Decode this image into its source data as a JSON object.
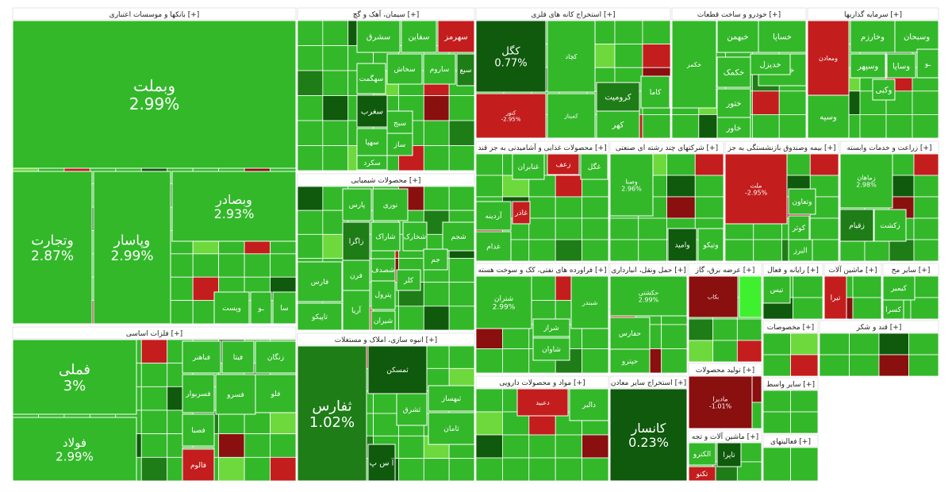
{
  "palette": {
    "green": "#33b82a",
    "green_dark": "#1f7d17",
    "green_deep": "#0f5a0c",
    "green_light": "#6dd93d",
    "bright": "#3ef02e",
    "red": "#c41d1d",
    "red_dark": "#8a0f0f",
    "header_bg": "#ffffff",
    "border": "#ffffff"
  },
  "chart_data": {
    "type": "heatmap",
    "sectors": [
      {
        "name": "بانکها و موسسات اعتباری [+]",
        "tiles": [
          {
            "label": "وبملت",
            "value": "2.99%",
            "color": "green"
          },
          {
            "label": "وتجارت",
            "value": "2.87%",
            "color": "green"
          },
          {
            "label": "وپاسار",
            "value": "2.99%",
            "color": "green"
          },
          {
            "label": "وبصادر",
            "value": "2.93%",
            "color": "green"
          },
          {
            "label": "وپست",
            "value": "",
            "color": "green"
          },
          {
            "label": "سا",
            "value": "",
            "color": "green"
          },
          {
            "label": "ـو",
            "value": "",
            "color": "green"
          }
        ]
      },
      {
        "name": "فلزات اساسی [+]",
        "tiles": [
          {
            "label": "فملی",
            "value": "3%",
            "color": "green"
          },
          {
            "label": "فولاد",
            "value": "2.99%",
            "color": "green"
          },
          {
            "label": "فباهنر",
            "value": "",
            "color": "green"
          },
          {
            "label": "فیتا",
            "value": "",
            "color": "green"
          },
          {
            "label": "زنگان",
            "value": "",
            "color": "green"
          },
          {
            "label": "فسرو",
            "value": "",
            "color": "green"
          },
          {
            "label": "فسربوار",
            "value": "",
            "color": "green"
          },
          {
            "label": "فلو",
            "value": "",
            "color": "green"
          },
          {
            "label": "فصبا",
            "value": "",
            "color": "green"
          },
          {
            "label": "ذوب",
            "value": "",
            "color": "green"
          },
          {
            "label": "فالوم",
            "value": "",
            "color": "red"
          }
        ]
      },
      {
        "name": "سیمان، آهک و گچ [+]",
        "tiles": [
          {
            "label": "سهرمز",
            "value": "",
            "color": "red"
          },
          {
            "label": "سفاین",
            "value": "",
            "color": "green"
          },
          {
            "label": "سشرق",
            "value": "",
            "color": "green"
          },
          {
            "label": "سخاش",
            "value": "",
            "color": "green"
          },
          {
            "label": "ساروم",
            "value": "",
            "color": "green"
          },
          {
            "label": "سبع",
            "value": "",
            "color": "green_dark"
          },
          {
            "label": "سغرب",
            "value": "",
            "color": "green_deep"
          },
          {
            "label": "سهگمت",
            "value": "",
            "color": "green"
          },
          {
            "label": "سبج",
            "value": "",
            "color": "green"
          },
          {
            "label": "ساز",
            "value": "",
            "color": "green"
          },
          {
            "label": "سهپا",
            "value": "",
            "color": "green"
          },
          {
            "label": "سکرد",
            "value": "",
            "color": "green"
          }
        ]
      },
      {
        "name": "محصولات شیمیایی [+]",
        "tiles": [
          {
            "label": "پارس",
            "value": "",
            "color": "green"
          },
          {
            "label": "نوری",
            "value": "",
            "color": "green"
          },
          {
            "label": "پترول",
            "value": "",
            "color": "green"
          },
          {
            "label": "زاگرا",
            "value": "",
            "color": "green_dark"
          },
          {
            "label": "شپنا",
            "value": "",
            "color": "green"
          },
          {
            "label": "شاراک",
            "value": "",
            "color": "green"
          },
          {
            "label": "شخارک",
            "value": "",
            "color": "green"
          },
          {
            "label": "شجم",
            "value": "",
            "color": "green"
          },
          {
            "label": "فارس",
            "value": "",
            "color": "green"
          },
          {
            "label": "تاپیکو",
            "value": "",
            "color": "green"
          },
          {
            "label": "آریا",
            "value": "",
            "color": "green"
          },
          {
            "label": "شیران",
            "value": "",
            "color": "green"
          },
          {
            "label": "فرن",
            "value": "",
            "color": "green"
          },
          {
            "label": "شصدف",
            "value": "",
            "color": "green"
          },
          {
            "label": "کلر",
            "value": "",
            "color": "green"
          },
          {
            "label": "جم",
            "value": "",
            "color": "green"
          }
        ]
      },
      {
        "name": "انبوه سازی، املاک و مستغلات [+]",
        "tiles": [
          {
            "label": "ثفارس",
            "value": "1.02%",
            "color": "green_dark"
          },
          {
            "label": "ثامان",
            "value": "",
            "color": "green"
          },
          {
            "label": "ثبهساز",
            "value": "",
            "color": "green"
          },
          {
            "label": "ثشرق",
            "value": "",
            "color": "green"
          },
          {
            "label": "آ س پ",
            "value": "",
            "color": "green_deep"
          },
          {
            "label": "ثمسکن",
            "value": "",
            "color": "green_deep"
          }
        ]
      },
      {
        "name": "استخراج کانه های فلزی [+]",
        "tiles": [
          {
            "label": "کگل",
            "value": "0.77%",
            "color": "green_deep"
          },
          {
            "label": "کچاد",
            "value": "",
            "color": "green"
          },
          {
            "label": "کرومیت",
            "value": "",
            "color": "green_dark"
          },
          {
            "label": "کاما",
            "value": "",
            "color": "green"
          },
          {
            "label": "کهر",
            "value": "",
            "color": "green"
          },
          {
            "label": "کنور",
            "value": "-2.95%",
            "color": "red"
          },
          {
            "label": "کمیناز",
            "value": "",
            "color": "green"
          }
        ]
      },
      {
        "name": "خودرو و ساخت قطعات [+]",
        "tiles": [
          {
            "label": "خساپا",
            "value": "",
            "color": "green"
          },
          {
            "label": "خبهمن",
            "value": "",
            "color": "green"
          },
          {
            "label": "خریخت",
            "value": "",
            "color": "green"
          },
          {
            "label": "خدیزل",
            "value": "",
            "color": "green"
          },
          {
            "label": "خکمک",
            "value": "",
            "color": "green"
          },
          {
            "label": "ختور",
            "value": "",
            "color": "green"
          },
          {
            "label": "خاور",
            "value": "",
            "color": "green"
          },
          {
            "label": "خکمر",
            "value": "",
            "color": "green"
          }
        ]
      },
      {
        "name": "سرمایه گذاریها [+]",
        "tiles": [
          {
            "label": "وسبحان",
            "value": "",
            "color": "green"
          },
          {
            "label": "وخارزم",
            "value": "",
            "color": "green"
          },
          {
            "label": "وسپهر",
            "value": "",
            "color": "green"
          },
          {
            "label": "وساپا",
            "value": "",
            "color": "green"
          },
          {
            "label": "وکبی",
            "value": "",
            "color": "green"
          },
          {
            "label": "وسپه",
            "value": "",
            "color": "green"
          },
          {
            "label": "ـو",
            "value": "",
            "color": "green"
          },
          {
            "label": "ومعادن",
            "value": "",
            "color": "red"
          }
        ]
      },
      {
        "name": "محصولات غذایی و آشامیدنی به جز قند [+]",
        "tiles": [
          {
            "label": "غاذر",
            "value": "",
            "color": "red"
          },
          {
            "label": "غگل",
            "value": "",
            "color": "green"
          },
          {
            "label": "غنابران",
            "value": "",
            "color": "green"
          },
          {
            "label": "غدام",
            "value": "",
            "color": "green"
          },
          {
            "label": "زعف",
            "value": "",
            "color": "red"
          },
          {
            "label": "آردینه",
            "value": "",
            "color": "green"
          }
        ]
      },
      {
        "name": "شرکتهای چند رشته ای صنعتی [+]",
        "tiles": [
          {
            "label": "وامید",
            "value": "",
            "color": "green_deep"
          },
          {
            "label": "وتیکو",
            "value": "",
            "color": "green"
          },
          {
            "label": "وصنا",
            "value": "2.96%",
            "color": "green"
          }
        ]
      },
      {
        "name": "بیمه وصندوق بازنشستگی به جز [+]",
        "tiles": [
          {
            "label": "وتعاون",
            "value": "",
            "color": "green"
          },
          {
            "label": "کوثر",
            "value": "",
            "color": "green"
          },
          {
            "label": "البرز",
            "value": "",
            "color": "green"
          },
          {
            "label": "ملت",
            "value": "-2.95%",
            "color": "red"
          }
        ]
      },
      {
        "name": "زراعت و خدمات وابسته [+]",
        "tiles": [
          {
            "label": "زقیام",
            "value": "",
            "color": "green_dark"
          },
          {
            "label": "زکشت",
            "value": "",
            "color": "green"
          },
          {
            "label": "زماهان",
            "value": "2.98%",
            "color": "green"
          }
        ]
      },
      {
        "name": "فراورده های نفتی، کک و سوخت هسته [+]",
        "tiles": [
          {
            "label": "شتران",
            "value": "2.99%",
            "color": "green"
          },
          {
            "label": "شبریز",
            "value": "",
            "color": "green"
          },
          {
            "label": "شراز",
            "value": "",
            "color": "green"
          },
          {
            "label": "شاوان",
            "value": "",
            "color": "green"
          },
          {
            "label": "شبندر",
            "value": "",
            "color": "green"
          }
        ]
      },
      {
        "name": "حمل ونقل، انبارداری [+]",
        "tiles": [
          {
            "label": "حکشتی",
            "value": "2.99%",
            "color": "green"
          },
          {
            "label": "حفارس",
            "value": "",
            "color": "green"
          },
          {
            "label": "حپترو",
            "value": "",
            "color": "green"
          }
        ]
      },
      {
        "name": "عرضه برق، گاز [+]",
        "tiles": [
          {
            "label": "بکاب",
            "value": "",
            "color": "red_dark"
          }
        ]
      },
      {
        "name": "رایانه و فعال [+]",
        "tiles": [
          {
            "label": "تیس",
            "value": "",
            "color": "green"
          }
        ]
      },
      {
        "name": "ماشین آلات [+]",
        "tiles": [
          {
            "label": "تیرا",
            "value": "",
            "color": "red"
          }
        ]
      },
      {
        "name": "سایر مح [+]",
        "tiles": [
          {
            "label": "کیمیر",
            "value": "",
            "color": "green"
          },
          {
            "label": "کسرا",
            "value": "",
            "color": "green"
          }
        ]
      },
      {
        "name": "مواد و محصولات دارویی [+]",
        "tiles": [
          {
            "label": "دالبر",
            "value": "",
            "color": "green"
          },
          {
            "label": "دعبید",
            "value": "",
            "color": "red"
          }
        ]
      },
      {
        "name": "استخراج سایر معادن [+]",
        "tiles": [
          {
            "label": "کانسار",
            "value": "0.23%",
            "color": "green_deep"
          }
        ]
      },
      {
        "name": "تولید محصولات [+]",
        "tiles": [
          {
            "label": "مادیرا",
            "value": "-1.01%",
            "color": "red_dark"
          }
        ]
      },
      {
        "name": "ماشین آلات و تجه [+]",
        "tiles": [
          {
            "label": "تکنو",
            "value": "",
            "color": "red"
          },
          {
            "label": "تاپرا",
            "value": "",
            "color": "green_deep"
          },
          {
            "label": "الکترو",
            "value": "",
            "color": "green"
          }
        ]
      },
      {
        "name": "مخصوصات [+]",
        "tiles": []
      },
      {
        "name": "قند و شکر [+]",
        "tiles": []
      },
      {
        "name": "سایر واسط [+]",
        "tiles": []
      },
      {
        "name": "فعالیتهای [+]",
        "tiles": []
      }
    ]
  }
}
